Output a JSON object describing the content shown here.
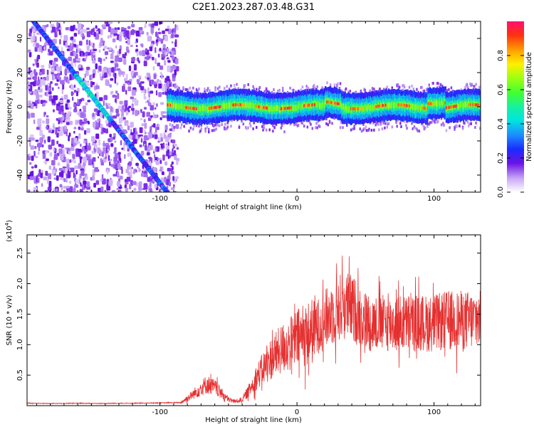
{
  "title": "C2E1.2023.287.03.48.G31",
  "colors": {
    "snr_line": "#e53030",
    "axis": "#000000",
    "background": "#ffffff"
  },
  "chart_data": [
    {
      "type": "heatmap",
      "xlabel": "Height of straight line (km)",
      "ylabel": "Frequency (Hz)",
      "xlim": [
        -197,
        134
      ],
      "ylim": [
        -50,
        50
      ],
      "xticks": [
        -100,
        0,
        100
      ],
      "yticks": [
        -40,
        -20,
        0,
        20,
        40
      ],
      "xtick_labels": [
        "-100",
        "0",
        "100"
      ],
      "ytick_labels": [
        "-40",
        "-20",
        "0",
        "20",
        "40"
      ],
      "colorbar": {
        "label": "Normalized spectral amplitude",
        "range": [
          0,
          1
        ],
        "ticks": [
          0.0,
          0.2,
          0.4,
          0.6,
          0.8
        ],
        "tick_labels": [
          "0.0",
          "0.2",
          "0.4",
          "0.6",
          "0.8"
        ]
      },
      "features": {
        "noise_region_x": [
          -197,
          -88
        ],
        "diagonal_streak": {
          "x": [
            -197,
            -90
          ],
          "y": [
            55,
            -55
          ]
        },
        "main_band_center_hz": 0,
        "main_band_x": [
          -95,
          134
        ]
      }
    },
    {
      "type": "line",
      "xlabel": "Height of straight line (km)",
      "ylabel": "SNR (10 * v/v)",
      "scale_label": "(x10",
      "scale_exp": "4",
      "scale_close": ")",
      "xlim": [
        -197,
        134
      ],
      "ylim": [
        0,
        28000
      ],
      "xticks": [
        -100,
        0,
        100
      ],
      "yticks": [
        5000,
        10000,
        15000,
        20000,
        25000
      ],
      "xtick_labels": [
        "-100",
        "0",
        "100"
      ],
      "ytick_labels": [
        "0.5",
        "1.0",
        "1.5",
        "2.0",
        "2.5"
      ],
      "series": [
        {
          "x": [
            -197,
            -180,
            -160,
            -140,
            -120,
            -100,
            -85,
            -78,
            -72,
            -66,
            -60,
            -55,
            -50,
            -45,
            -40,
            -35,
            -30,
            -25,
            -20,
            -15,
            -10,
            -5,
            0,
            5,
            10,
            15,
            20,
            25,
            30,
            35,
            40,
            45,
            50,
            55,
            60,
            70,
            80,
            90,
            100,
            110,
            120,
            130,
            134
          ],
          "values": [
            400,
            350,
            400,
            350,
            400,
            450,
            500,
            1500,
            2500,
            3500,
            3000,
            2000,
            1000,
            700,
            1000,
            2500,
            4500,
            6000,
            7500,
            8500,
            9500,
            10000,
            11000,
            11500,
            12000,
            13000,
            14000,
            15000,
            16000,
            16500,
            16000,
            15000,
            14000,
            13500,
            13500,
            13500,
            13500,
            13500,
            13500,
            14000,
            14000,
            14000,
            14000
          ]
        }
      ]
    }
  ]
}
